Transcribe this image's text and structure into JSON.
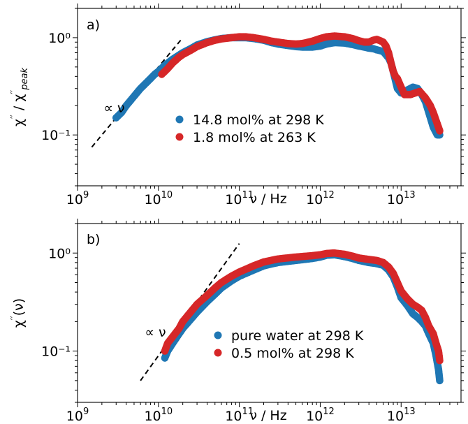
{
  "chart_data": [
    {
      "type": "scatter",
      "panel_label": "a)",
      "xlabel": "ν / Hz",
      "ylabel": "χ'' / χ''peak",
      "x_scale": "log",
      "y_scale": "log",
      "xlim": [
        1000000000.0,
        55000000000000.0
      ],
      "ylim": [
        0.03,
        2.0
      ],
      "xticks": [
        {
          "value": 1000000000.0,
          "base": "10",
          "exp": "9"
        },
        {
          "value": 10000000000.0,
          "base": "10",
          "exp": "10"
        },
        {
          "value": 100000000000.0,
          "base": "10",
          "exp": "11"
        },
        {
          "value": 1000000000000.0,
          "base": "10",
          "exp": "12"
        },
        {
          "value": 10000000000000.0,
          "base": "10",
          "exp": "13"
        }
      ],
      "yticks": [
        {
          "value": 0.1,
          "label": "10⁻¹"
        },
        {
          "value": 1.0,
          "label": "10⁰"
        }
      ],
      "annotation": {
        "text": "∝ ν",
        "x": 2100000000.0,
        "y": 0.17
      },
      "guide_line": {
        "style": "dashed",
        "x": [
          1500000000.0,
          20000000000.0
        ],
        "y": [
          0.075,
          1.0
        ]
      },
      "legend_position": "lower-center",
      "series": [
        {
          "name": "14.8 mol% at 298 K",
          "color": "#1f77b4",
          "x": [
            3000000000.0,
            3500000000.0,
            4000000000.0,
            5000000000.0,
            6000000000.0,
            7000000000.0,
            8000000000.0,
            9000000000.0,
            10000000000.0,
            12000000000.0,
            15000000000.0,
            20000000000.0,
            25000000000.0,
            30000000000.0,
            40000000000.0,
            50000000000.0,
            60000000000.0,
            80000000000.0,
            100000000000.0,
            120000000000.0,
            150000000000.0,
            200000000000.0,
            250000000000.0,
            300000000000.0,
            400000000000.0,
            500000000000.0,
            600000000000.0,
            800000000000.0,
            1000000000000.0,
            1200000000000.0,
            1500000000000.0,
            2000000000000.0,
            2500000000000.0,
            3000000000000.0,
            3500000000000.0,
            4000000000000.0,
            4500000000000.0,
            5000000000000.0,
            6000000000000.0,
            7000000000000.0,
            7500000000000.0,
            8000000000000.0,
            9000000000000.0,
            10000000000000.0,
            11000000000000.0,
            12000000000000.0,
            14000000000000.0,
            16000000000000.0,
            18000000000000.0,
            20000000000000.0,
            22000000000000.0,
            25000000000000.0,
            28000000000000.0,
            30000000000000.0
          ],
          "y": [
            0.15,
            0.17,
            0.2,
            0.25,
            0.3,
            0.34,
            0.38,
            0.42,
            0.45,
            0.52,
            0.6,
            0.7,
            0.77,
            0.84,
            0.91,
            0.95,
            0.98,
            1.0,
            1.0,
            1.0,
            0.98,
            0.94,
            0.89,
            0.86,
            0.83,
            0.81,
            0.8,
            0.8,
            0.82,
            0.86,
            0.89,
            0.88,
            0.85,
            0.82,
            0.8,
            0.78,
            0.77,
            0.75,
            0.72,
            0.62,
            0.55,
            0.45,
            0.3,
            0.27,
            0.27,
            0.29,
            0.31,
            0.3,
            0.26,
            0.22,
            0.17,
            0.12,
            0.1,
            0.1
          ]
        },
        {
          "name": "1.8 mol% at 263 K",
          "color": "#d62728",
          "x": [
            11000000000.0,
            13000000000.0,
            15000000000.0,
            18000000000.0,
            20000000000.0,
            25000000000.0,
            30000000000.0,
            40000000000.0,
            50000000000.0,
            60000000000.0,
            80000000000.0,
            100000000000.0,
            120000000000.0,
            150000000000.0,
            200000000000.0,
            250000000000.0,
            300000000000.0,
            400000000000.0,
            500000000000.0,
            600000000000.0,
            800000000000.0,
            1000000000000.0,
            1200000000000.0,
            1500000000000.0,
            2000000000000.0,
            2500000000000.0,
            3000000000000.0,
            3500000000000.0,
            4000000000000.0,
            4500000000000.0,
            5000000000000.0,
            5500000000000.0,
            6000000000000.0,
            6500000000000.0,
            7000000000000.0,
            7500000000000.0,
            8000000000000.0,
            8500000000000.0,
            9000000000000.0,
            10000000000000.0,
            11000000000000.0,
            13000000000000.0,
            15000000000000.0,
            17000000000000.0,
            20000000000000.0,
            23000000000000.0,
            25000000000000.0,
            28000000000000.0,
            30000000000000.0
          ],
          "y": [
            0.42,
            0.48,
            0.55,
            0.63,
            0.67,
            0.74,
            0.81,
            0.89,
            0.94,
            0.97,
            1.0,
            1.02,
            1.02,
            1.0,
            0.96,
            0.92,
            0.9,
            0.87,
            0.86,
            0.87,
            0.92,
            0.98,
            1.02,
            1.04,
            1.02,
            0.98,
            0.93,
            0.9,
            0.9,
            0.94,
            0.96,
            0.93,
            0.9,
            0.82,
            0.7,
            0.55,
            0.45,
            0.4,
            0.38,
            0.31,
            0.26,
            0.26,
            0.27,
            0.28,
            0.24,
            0.2,
            0.17,
            0.13,
            0.11
          ]
        }
      ]
    },
    {
      "type": "scatter",
      "panel_label": "b)",
      "xlabel": "ν / Hz",
      "ylabel": "χ''(ν)",
      "x_scale": "log",
      "y_scale": "log",
      "xlim": [
        1000000000.0,
        55000000000000.0
      ],
      "ylim": [
        0.03,
        2.0
      ],
      "xticks": [
        {
          "value": 1000000000.0,
          "base": "10",
          "exp": "9"
        },
        {
          "value": 10000000000.0,
          "base": "10",
          "exp": "10"
        },
        {
          "value": 100000000000.0,
          "base": "10",
          "exp": "11"
        },
        {
          "value": 1000000000000.0,
          "base": "10",
          "exp": "12"
        },
        {
          "value": 10000000000000.0,
          "base": "10",
          "exp": "13"
        }
      ],
      "yticks": [
        {
          "value": 0.1,
          "label": "10⁻¹"
        },
        {
          "value": 1.0,
          "label": "10⁰"
        }
      ],
      "annotation": {
        "text": "∝ ν",
        "x": 6800000000.0,
        "y": 0.14
      },
      "guide_line": {
        "style": "dashed",
        "x": [
          6000000000.0,
          100000000000.0
        ],
        "y": [
          0.05,
          1.25
        ]
      },
      "legend_position": "lower-center",
      "series": [
        {
          "name": "pure water at 298 K",
          "color": "#1f77b4",
          "x": [
            12000000000.0,
            13000000000.0,
            15000000000.0,
            18000000000.0,
            20000000000.0,
            25000000000.0,
            30000000000.0,
            40000000000.0,
            50000000000.0,
            60000000000.0,
            80000000000.0,
            100000000000.0,
            150000000000.0,
            200000000000.0,
            300000000000.0,
            500000000000.0,
            800000000000.0,
            1000000000000.0,
            1200000000000.0,
            1500000000000.0,
            2000000000000.0,
            2500000000000.0,
            3000000000000.0,
            4000000000000.0,
            5000000000000.0,
            6000000000000.0,
            7000000000000.0,
            8000000000000.0,
            9000000000000.0,
            10000000000000.0,
            12000000000000.0,
            14000000000000.0,
            16000000000000.0,
            18000000000000.0,
            20000000000000.0,
            22000000000000.0,
            25000000000000.0,
            27000000000000.0,
            29000000000000.0,
            30000000000000.0
          ],
          "y": [
            0.085,
            0.1,
            0.12,
            0.15,
            0.17,
            0.21,
            0.25,
            0.32,
            0.38,
            0.44,
            0.52,
            0.58,
            0.67,
            0.74,
            0.8,
            0.84,
            0.88,
            0.91,
            0.95,
            0.96,
            0.92,
            0.88,
            0.84,
            0.8,
            0.78,
            0.75,
            0.67,
            0.57,
            0.45,
            0.35,
            0.29,
            0.24,
            0.22,
            0.2,
            0.18,
            0.15,
            0.12,
            0.09,
            0.065,
            0.05
          ]
        },
        {
          "name": "0.5 mol% at 298 K",
          "color": "#d62728",
          "x": [
            12000000000.0,
            13000000000.0,
            15000000000.0,
            18000000000.0,
            20000000000.0,
            25000000000.0,
            30000000000.0,
            40000000000.0,
            50000000000.0,
            60000000000.0,
            80000000000.0,
            100000000000.0,
            150000000000.0,
            200000000000.0,
            300000000000.0,
            500000000000.0,
            800000000000.0,
            1000000000000.0,
            1200000000000.0,
            1500000000000.0,
            2000000000000.0,
            2500000000000.0,
            3000000000000.0,
            4000000000000.0,
            5000000000000.0,
            6000000000000.0,
            7000000000000.0,
            8000000000000.0,
            9000000000000.0,
            10000000000000.0,
            12000000000000.0,
            14000000000000.0,
            16000000000000.0,
            18000000000000.0,
            20000000000000.0,
            22000000000000.0,
            25000000000000.0,
            27000000000000.0,
            29000000000000.0,
            30000000000000.0
          ],
          "y": [
            0.1,
            0.12,
            0.14,
            0.17,
            0.2,
            0.25,
            0.3,
            0.37,
            0.44,
            0.5,
            0.58,
            0.64,
            0.74,
            0.81,
            0.87,
            0.91,
            0.94,
            0.96,
            0.99,
            1.0,
            0.97,
            0.93,
            0.89,
            0.86,
            0.84,
            0.8,
            0.72,
            0.62,
            0.5,
            0.41,
            0.34,
            0.3,
            0.28,
            0.26,
            0.22,
            0.18,
            0.15,
            0.12,
            0.1,
            0.08
          ]
        }
      ]
    }
  ]
}
